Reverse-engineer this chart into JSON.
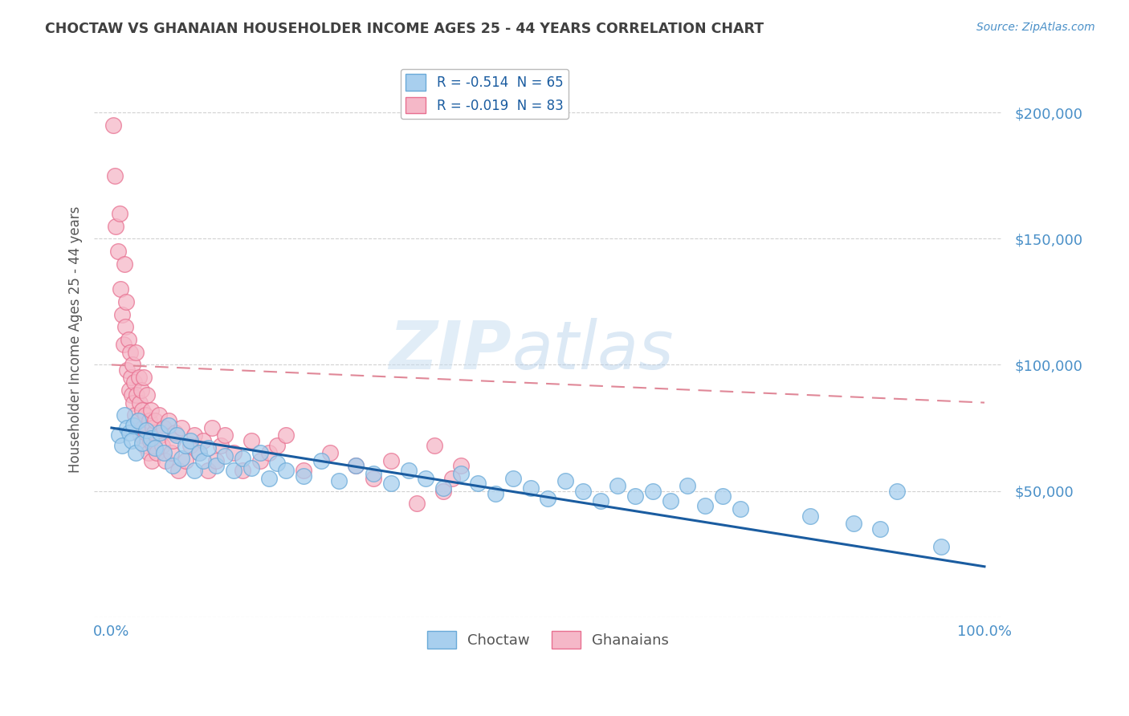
{
  "title": "CHOCTAW VS GHANAIAN HOUSEHOLDER INCOME AGES 25 - 44 YEARS CORRELATION CHART",
  "source": "Source: ZipAtlas.com",
  "ylabel": "Householder Income Ages 25 - 44 years",
  "xlim": [
    -2.0,
    102.0
  ],
  "ylim": [
    0,
    220000
  ],
  "yticks": [
    0,
    50000,
    100000,
    150000,
    200000
  ],
  "ytick_labels": [
    "",
    "$50,000",
    "$100,000",
    "$150,000",
    "$200,000"
  ],
  "xticks": [
    0.0,
    20.0,
    40.0,
    60.0,
    80.0,
    100.0
  ],
  "xtick_labels": [
    "0.0%",
    "",
    "",
    "",
    "",
    "100.0%"
  ],
  "choctaw_color": "#A8CFEE",
  "ghanaian_color": "#F5B8C8",
  "choctaw_edge": "#6AAAD8",
  "ghanaian_edge": "#E87090",
  "trend_blue": "#1A5CA0",
  "trend_pink": "#E08898",
  "R_choctaw": -0.514,
  "N_choctaw": 65,
  "R_ghanaian": -0.019,
  "N_ghanaian": 83,
  "legend_label_choctaw": "Choctaw",
  "legend_label_ghanaian": "Ghanaians",
  "watermark_zip": "ZIP",
  "watermark_atlas": "atlas",
  "background_color": "#FFFFFF",
  "title_color": "#404040",
  "axis_color": "#4A90C8",
  "grid_color": "#CCCCCC",
  "choctaw_x": [
    0.8,
    1.2,
    1.5,
    1.8,
    2.0,
    2.3,
    2.5,
    2.8,
    3.0,
    3.5,
    4.0,
    4.5,
    5.0,
    5.5,
    6.0,
    6.5,
    7.0,
    7.5,
    8.0,
    8.5,
    9.0,
    9.5,
    10.0,
    10.5,
    11.0,
    12.0,
    13.0,
    14.0,
    15.0,
    16.0,
    17.0,
    18.0,
    19.0,
    20.0,
    22.0,
    24.0,
    26.0,
    28.0,
    30.0,
    32.0,
    34.0,
    36.0,
    38.0,
    40.0,
    42.0,
    44.0,
    46.0,
    48.0,
    50.0,
    52.0,
    54.0,
    56.0,
    58.0,
    60.0,
    62.0,
    64.0,
    66.0,
    68.0,
    70.0,
    72.0,
    80.0,
    85.0,
    88.0,
    90.0,
    95.0
  ],
  "choctaw_y": [
    72000,
    68000,
    80000,
    75000,
    73000,
    70000,
    76000,
    65000,
    78000,
    69000,
    74000,
    71000,
    67000,
    73000,
    65000,
    76000,
    60000,
    72000,
    63000,
    68000,
    70000,
    58000,
    65000,
    62000,
    67000,
    60000,
    64000,
    58000,
    63000,
    59000,
    65000,
    55000,
    61000,
    58000,
    56000,
    62000,
    54000,
    60000,
    57000,
    53000,
    58000,
    55000,
    51000,
    57000,
    53000,
    49000,
    55000,
    51000,
    47000,
    54000,
    50000,
    46000,
    52000,
    48000,
    50000,
    46000,
    52000,
    44000,
    48000,
    43000,
    40000,
    37000,
    35000,
    50000,
    28000
  ],
  "ghanaian_x": [
    0.2,
    0.4,
    0.5,
    0.7,
    0.9,
    1.0,
    1.2,
    1.4,
    1.5,
    1.6,
    1.7,
    1.8,
    1.9,
    2.0,
    2.1,
    2.2,
    2.3,
    2.4,
    2.5,
    2.6,
    2.7,
    2.8,
    2.9,
    3.0,
    3.1,
    3.2,
    3.3,
    3.4,
    3.5,
    3.6,
    3.7,
    3.8,
    3.9,
    4.0,
    4.1,
    4.2,
    4.3,
    4.4,
    4.5,
    4.6,
    4.7,
    4.8,
    4.9,
    5.0,
    5.2,
    5.4,
    5.6,
    5.8,
    6.0,
    6.2,
    6.5,
    6.8,
    7.0,
    7.3,
    7.6,
    8.0,
    8.5,
    9.0,
    9.5,
    10.0,
    10.5,
    11.0,
    11.5,
    12.0,
    12.5,
    13.0,
    14.0,
    15.0,
    16.0,
    17.0,
    18.0,
    19.0,
    20.0,
    22.0,
    25.0,
    28.0,
    30.0,
    32.0,
    35.0,
    37.0,
    38.0,
    39.0,
    40.0
  ],
  "ghanaian_y": [
    195000,
    175000,
    155000,
    145000,
    160000,
    130000,
    120000,
    108000,
    140000,
    115000,
    125000,
    98000,
    110000,
    90000,
    105000,
    95000,
    88000,
    100000,
    85000,
    93000,
    80000,
    105000,
    88000,
    78000,
    95000,
    85000,
    72000,
    90000,
    82000,
    75000,
    95000,
    68000,
    80000,
    73000,
    88000,
    65000,
    78000,
    70000,
    82000,
    62000,
    75000,
    68000,
    73000,
    78000,
    65000,
    80000,
    72000,
    68000,
    75000,
    62000,
    78000,
    65000,
    70000,
    73000,
    58000,
    75000,
    62000,
    68000,
    72000,
    65000,
    70000,
    58000,
    75000,
    62000,
    68000,
    72000,
    65000,
    58000,
    70000,
    62000,
    65000,
    68000,
    72000,
    58000,
    65000,
    60000,
    55000,
    62000,
    45000,
    68000,
    50000,
    55000,
    60000
  ]
}
